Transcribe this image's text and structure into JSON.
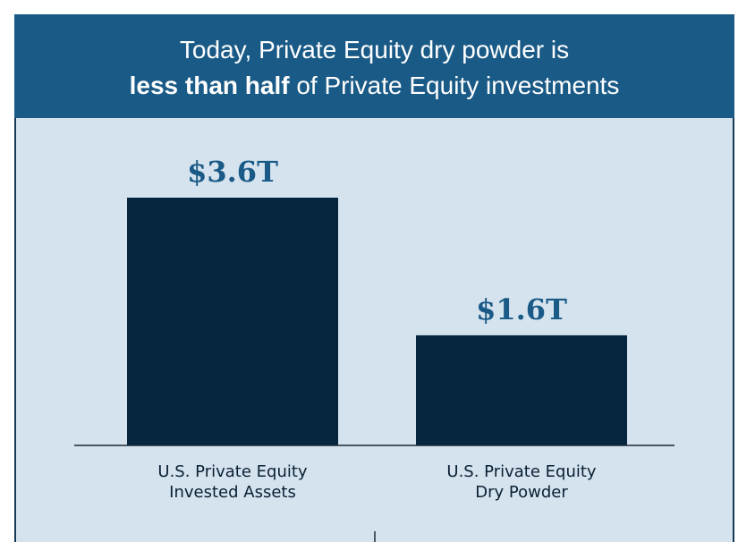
{
  "header": {
    "line1": "Today, Private Equity dry powder is",
    "line2_bold": "less than half",
    "line2_rest": " of Private Equity investments"
  },
  "colors": {
    "header_bg": "#1a5a86",
    "panel_bg": "#d4e3ee",
    "bar": "#06253f",
    "value_label": "#1a5a86"
  },
  "chart_data": {
    "type": "bar",
    "categories": [
      [
        "U.S. Private Equity",
        "Invested Assets"
      ],
      [
        "U.S. Private Equity",
        "Dry Powder"
      ]
    ],
    "values": [
      3.6,
      1.6
    ],
    "data_labels": [
      "$3.6T",
      "$1.6T"
    ],
    "unit": "trillion USD",
    "ylim": [
      0,
      4.5
    ],
    "grid": false,
    "legend": "none"
  }
}
